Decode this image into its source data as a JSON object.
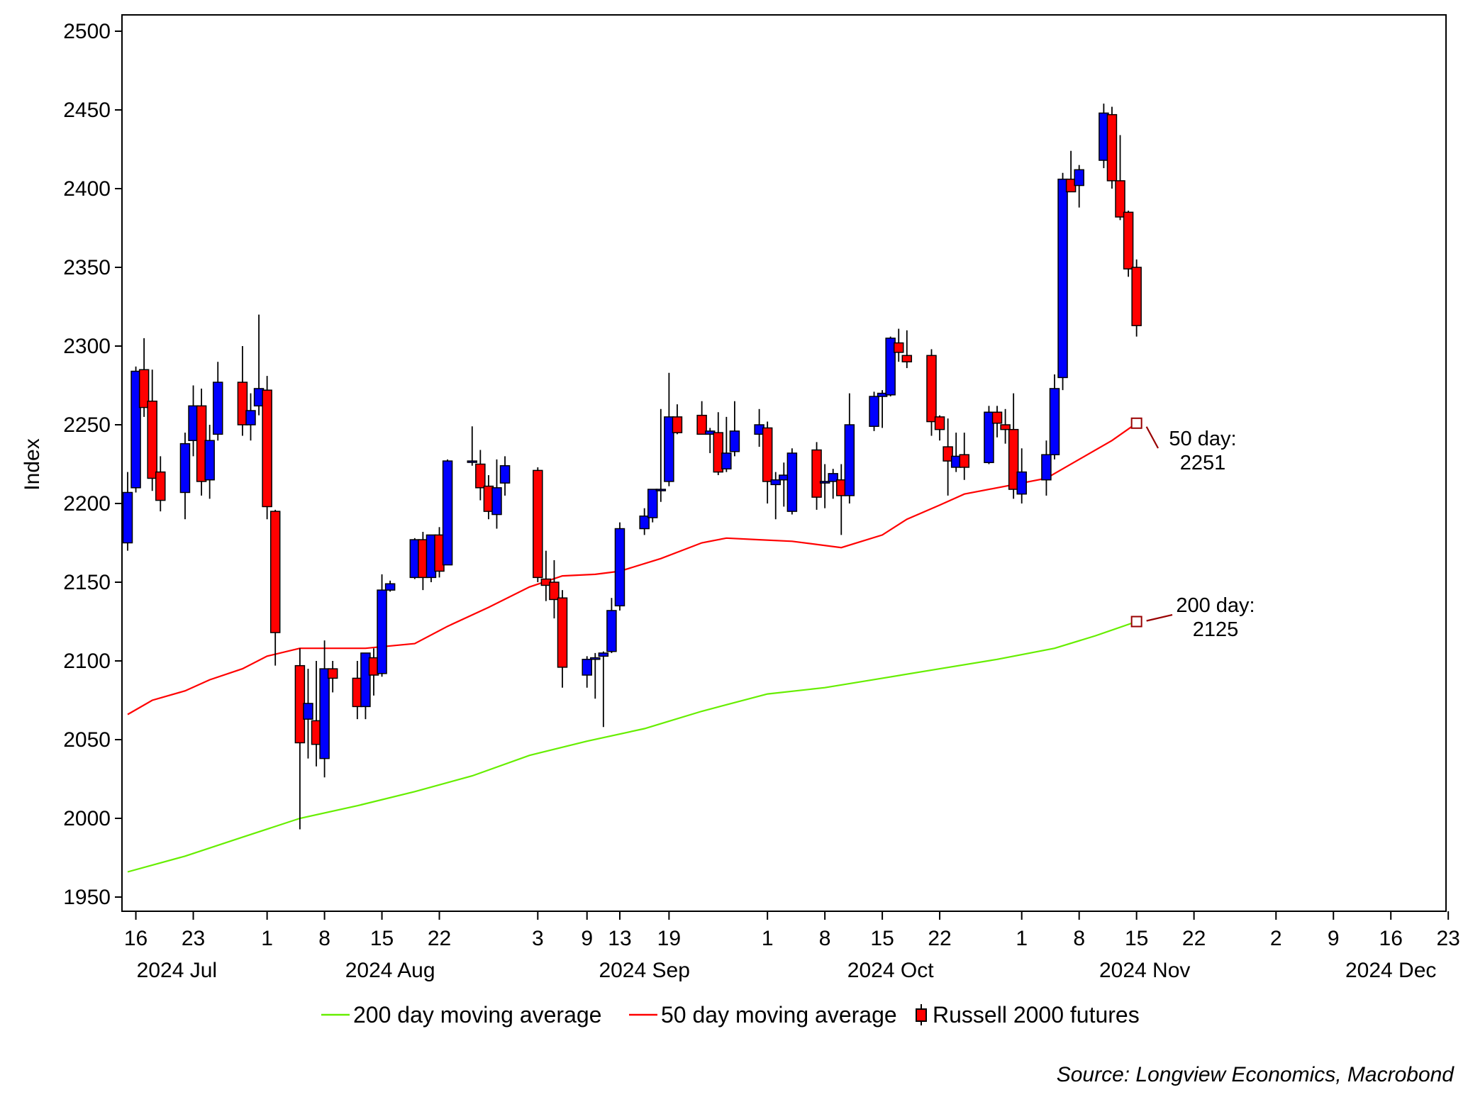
{
  "chart_data": {
    "type": "candlestick",
    "ylabel": "Index",
    "ylim": [
      1950,
      2500
    ],
    "yticks": [
      1950,
      2000,
      2050,
      2100,
      2150,
      2200,
      2250,
      2300,
      2350,
      2400,
      2450,
      2500
    ],
    "x_range": [
      "2024-07-15",
      "2024-12-28"
    ],
    "x_ticks": [
      {
        "date": "2024-07-16",
        "label": "16"
      },
      {
        "date": "2024-07-23",
        "label": "23"
      },
      {
        "date": "2024-08-01",
        "label": "1"
      },
      {
        "date": "2024-08-08",
        "label": "8"
      },
      {
        "date": "2024-08-15",
        "label": "15"
      },
      {
        "date": "2024-08-22",
        "label": "22"
      },
      {
        "date": "2024-09-03",
        "label": "3"
      },
      {
        "date": "2024-09-09",
        "label": "9"
      },
      {
        "date": "2024-09-13",
        "label": "13"
      },
      {
        "date": "2024-09-19",
        "label": "19"
      },
      {
        "date": "2024-10-01",
        "label": "1"
      },
      {
        "date": "2024-10-08",
        "label": "8"
      },
      {
        "date": "2024-10-15",
        "label": "15"
      },
      {
        "date": "2024-10-22",
        "label": "22"
      },
      {
        "date": "2024-11-01",
        "label": "1"
      },
      {
        "date": "2024-11-08",
        "label": "8"
      },
      {
        "date": "2024-11-15",
        "label": "15"
      },
      {
        "date": "2024-11-22",
        "label": "22"
      },
      {
        "date": "2024-12-02",
        "label": "2"
      },
      {
        "date": "2024-12-09",
        "label": "9"
      },
      {
        "date": "2024-12-16",
        "label": "16"
      },
      {
        "date": "2024-12-23",
        "label": "23"
      }
    ],
    "month_labels": [
      {
        "date": "2024-07-21",
        "label": "2024 Jul"
      },
      {
        "date": "2024-08-16",
        "label": "2024 Aug"
      },
      {
        "date": "2024-09-16",
        "label": "2024 Sep"
      },
      {
        "date": "2024-10-16",
        "label": "2024 Oct"
      },
      {
        "date": "2024-11-16",
        "label": "2024 Nov"
      },
      {
        "date": "2024-12-16",
        "label": "2024 Dec"
      }
    ],
    "series": [
      {
        "name": "Russell 2000 futures",
        "type": "candlestick",
        "up_color": "#0000ff",
        "down_color": "#ff0000",
        "ohlc": [
          [
            "2024-07-15",
            2175,
            2220,
            2170,
            2207
          ],
          [
            "2024-07-16",
            2210,
            2287,
            2207,
            2284
          ],
          [
            "2024-07-17",
            2285,
            2305,
            2255,
            2261
          ],
          [
            "2024-07-18",
            2265,
            2285,
            2208,
            2216
          ],
          [
            "2024-07-19",
            2220,
            2230,
            2195,
            2202
          ],
          [
            "2024-07-22",
            2207,
            2245,
            2190,
            2238
          ],
          [
            "2024-07-23",
            2240,
            2275,
            2230,
            2262
          ],
          [
            "2024-07-24",
            2262,
            2273,
            2205,
            2214
          ],
          [
            "2024-07-25",
            2215,
            2250,
            2203,
            2240
          ],
          [
            "2024-07-26",
            2244,
            2290,
            2240,
            2277
          ],
          [
            "2024-07-29",
            2277,
            2300,
            2243,
            2250
          ],
          [
            "2024-07-30",
            2250,
            2270,
            2240,
            2259
          ],
          [
            "2024-07-31",
            2262,
            2320,
            2256,
            2273
          ],
          [
            "2024-08-01",
            2272,
            2281,
            2190,
            2198
          ],
          [
            "2024-08-02",
            2195,
            2196,
            2097,
            2118
          ],
          [
            "2024-08-05",
            2097,
            2108,
            1993,
            2048
          ],
          [
            "2024-08-06",
            2063,
            2095,
            2038,
            2073
          ],
          [
            "2024-08-07",
            2062,
            2100,
            2033,
            2047
          ],
          [
            "2024-08-08",
            2038,
            2113,
            2026,
            2095
          ],
          [
            "2024-08-09",
            2095,
            2100,
            2080,
            2089
          ],
          [
            "2024-08-12",
            2089,
            2100,
            2063,
            2071
          ],
          [
            "2024-08-13",
            2071,
            2105,
            2063,
            2105
          ],
          [
            "2024-08-14",
            2102,
            2108,
            2078,
            2091
          ],
          [
            "2024-08-15",
            2092,
            2155,
            2090,
            2145
          ],
          [
            "2024-08-16",
            2145,
            2151,
            2144,
            2149
          ],
          [
            "2024-08-19",
            2153,
            2178,
            2152,
            2177
          ],
          [
            "2024-08-20",
            2177,
            2182,
            2145,
            2153
          ],
          [
            "2024-08-21",
            2153,
            2180,
            2150,
            2180
          ],
          [
            "2024-08-22",
            2180,
            2185,
            2153,
            2157
          ],
          [
            "2024-08-23",
            2161,
            2228,
            2161,
            2227
          ],
          [
            "2024-08-26",
            2227,
            2249,
            2224,
            2227
          ],
          [
            "2024-08-27",
            2225,
            2234,
            2202,
            2210
          ],
          [
            "2024-08-28",
            2211,
            2218,
            2190,
            2195
          ],
          [
            "2024-08-29",
            2193,
            2228,
            2184,
            2210
          ],
          [
            "2024-08-30",
            2213,
            2230,
            2205,
            2224
          ],
          [
            "2024-09-03",
            2221,
            2223,
            2150,
            2153
          ],
          [
            "2024-09-04",
            2152,
            2170,
            2138,
            2148
          ],
          [
            "2024-09-05",
            2150,
            2164,
            2127,
            2139
          ],
          [
            "2024-09-06",
            2140,
            2145,
            2083,
            2096
          ],
          [
            "2024-09-09",
            2091,
            2103,
            2083,
            2101
          ],
          [
            "2024-09-10",
            2101,
            2105,
            2076,
            2102
          ],
          [
            "2024-09-11",
            2103,
            2106,
            2058,
            2105
          ],
          [
            "2024-09-12",
            2106,
            2140,
            2105,
            2132
          ],
          [
            "2024-09-13",
            2135,
            2188,
            2132,
            2184
          ],
          [
            "2024-09-16",
            2184,
            2197,
            2180,
            2192
          ],
          [
            "2024-09-17",
            2191,
            2205,
            2188,
            2209
          ],
          [
            "2024-09-18",
            2209,
            2260,
            2201,
            2209
          ],
          [
            "2024-09-19",
            2214,
            2283,
            2211,
            2255
          ],
          [
            "2024-09-20",
            2255,
            2263,
            2244,
            2245
          ],
          [
            "2024-09-23",
            2256,
            2265,
            2244,
            2244
          ],
          [
            "2024-09-24",
            2244,
            2248,
            2232,
            2246
          ],
          [
            "2024-09-25",
            2245,
            2258,
            2218,
            2220
          ],
          [
            "2024-09-26",
            2222,
            2255,
            2220,
            2232
          ],
          [
            "2024-09-27",
            2233,
            2265,
            2230,
            2246
          ],
          [
            "2024-09-30",
            2244,
            2260,
            2236,
            2250
          ],
          [
            "2024-10-01",
            2248,
            2252,
            2200,
            2214
          ],
          [
            "2024-10-02",
            2212,
            2220,
            2190,
            2215
          ],
          [
            "2024-10-03",
            2215,
            2226,
            2198,
            2218
          ],
          [
            "2024-10-04",
            2195,
            2235,
            2193,
            2232
          ],
          [
            "2024-10-07",
            2234,
            2239,
            2196,
            2204
          ],
          [
            "2024-10-08",
            2213,
            2225,
            2197,
            2214
          ],
          [
            "2024-10-09",
            2214,
            2222,
            2203,
            2219
          ],
          [
            "2024-10-10",
            2215,
            2225,
            2180,
            2205
          ],
          [
            "2024-10-11",
            2205,
            2270,
            2200,
            2250
          ],
          [
            "2024-10-14",
            2249,
            2271,
            2246,
            2268
          ],
          [
            "2024-10-15",
            2268,
            2272,
            2248,
            2270
          ],
          [
            "2024-10-16",
            2269,
            2306,
            2268,
            2305
          ],
          [
            "2024-10-17",
            2302,
            2311,
            2290,
            2296
          ],
          [
            "2024-10-18",
            2294,
            2310,
            2286,
            2290
          ],
          [
            "2024-10-21",
            2294,
            2298,
            2243,
            2252
          ],
          [
            "2024-10-22",
            2255,
            2256,
            2240,
            2247
          ],
          [
            "2024-10-23",
            2236,
            2254,
            2205,
            2227
          ],
          [
            "2024-10-24",
            2223,
            2245,
            2220,
            2230
          ],
          [
            "2024-10-25",
            2231,
            2245,
            2215,
            2223
          ],
          [
            "2024-10-28",
            2226,
            2262,
            2225,
            2258
          ],
          [
            "2024-10-29",
            2258,
            2262,
            2242,
            2251
          ],
          [
            "2024-10-30",
            2250,
            2260,
            2238,
            2247
          ],
          [
            "2024-10-31",
            2247,
            2270,
            2203,
            2209
          ],
          [
            "2024-11-01",
            2206,
            2235,
            2200,
            2220
          ],
          [
            "2024-11-04",
            2215,
            2240,
            2205,
            2231
          ],
          [
            "2024-11-05",
            2231,
            2282,
            2228,
            2273
          ],
          [
            "2024-11-06",
            2280,
            2410,
            2272,
            2406
          ],
          [
            "2024-11-07",
            2406,
            2424,
            2398,
            2398
          ],
          [
            "2024-11-08",
            2402,
            2415,
            2388,
            2412
          ],
          [
            "2024-11-11",
            2418,
            2454,
            2413,
            2448
          ],
          [
            "2024-11-12",
            2447,
            2452,
            2400,
            2405
          ],
          [
            "2024-11-13",
            2405,
            2434,
            2380,
            2382
          ],
          [
            "2024-11-14",
            2385,
            2386,
            2344,
            2349
          ],
          [
            "2024-11-15",
            2350,
            2355,
            2306,
            2313
          ]
        ]
      },
      {
        "name": "50 day moving average",
        "type": "line",
        "color": "#ff0000",
        "points": [
          [
            "2024-07-15",
            2066
          ],
          [
            "2024-07-18",
            2075
          ],
          [
            "2024-07-22",
            2081
          ],
          [
            "2024-07-25",
            2088
          ],
          [
            "2024-07-29",
            2095
          ],
          [
            "2024-08-01",
            2103
          ],
          [
            "2024-08-05",
            2108
          ],
          [
            "2024-08-08",
            2108
          ],
          [
            "2024-08-13",
            2108
          ],
          [
            "2024-08-19",
            2111
          ],
          [
            "2024-08-23",
            2122
          ],
          [
            "2024-08-28",
            2134
          ],
          [
            "2024-09-02",
            2147
          ],
          [
            "2024-09-06",
            2154
          ],
          [
            "2024-09-10",
            2155
          ],
          [
            "2024-09-13",
            2157
          ],
          [
            "2024-09-18",
            2165
          ],
          [
            "2024-09-23",
            2175
          ],
          [
            "2024-09-26",
            2178
          ],
          [
            "2024-09-30",
            2177
          ],
          [
            "2024-10-04",
            2176
          ],
          [
            "2024-10-10",
            2172
          ],
          [
            "2024-10-15",
            2180
          ],
          [
            "2024-10-18",
            2190
          ],
          [
            "2024-10-22",
            2199
          ],
          [
            "2024-10-25",
            2206
          ],
          [
            "2024-10-31",
            2212
          ],
          [
            "2024-11-04",
            2216
          ],
          [
            "2024-11-08",
            2228
          ],
          [
            "2024-11-12",
            2240
          ],
          [
            "2024-11-15",
            2251
          ]
        ]
      },
      {
        "name": "200 day moving average",
        "type": "line",
        "color": "#66ee00",
        "points": [
          [
            "2024-07-15",
            1966
          ],
          [
            "2024-07-22",
            1976
          ],
          [
            "2024-07-29",
            1988
          ],
          [
            "2024-08-05",
            2000
          ],
          [
            "2024-08-12",
            2008
          ],
          [
            "2024-08-19",
            2017
          ],
          [
            "2024-08-26",
            2027
          ],
          [
            "2024-09-02",
            2040
          ],
          [
            "2024-09-09",
            2049
          ],
          [
            "2024-09-16",
            2057
          ],
          [
            "2024-09-23",
            2068
          ],
          [
            "2024-10-01",
            2079
          ],
          [
            "2024-10-08",
            2083
          ],
          [
            "2024-10-15",
            2089
          ],
          [
            "2024-10-22",
            2095
          ],
          [
            "2024-10-29",
            2101
          ],
          [
            "2024-11-05",
            2108
          ],
          [
            "2024-11-10",
            2116
          ],
          [
            "2024-11-15",
            2125
          ]
        ]
      }
    ],
    "annotations": [
      {
        "anchor_date": "2024-11-15",
        "anchor_value": 2251,
        "line1": "50 day:",
        "line2": "2251"
      },
      {
        "anchor_date": "2024-11-15",
        "anchor_value": 2125,
        "line1": "200 day:",
        "line2": "2125"
      }
    ],
    "legend": {
      "placement": "bottom-center",
      "items": [
        {
          "label": "200 day moving average",
          "color": "#66ee00",
          "marker": "line"
        },
        {
          "label": "50 day moving average",
          "color": "#ff0000",
          "marker": "line"
        },
        {
          "label": "Russell 2000 futures",
          "color": "#ff0000",
          "marker": "candle"
        }
      ]
    },
    "source": "Source: Longview Economics, Macrobond"
  }
}
